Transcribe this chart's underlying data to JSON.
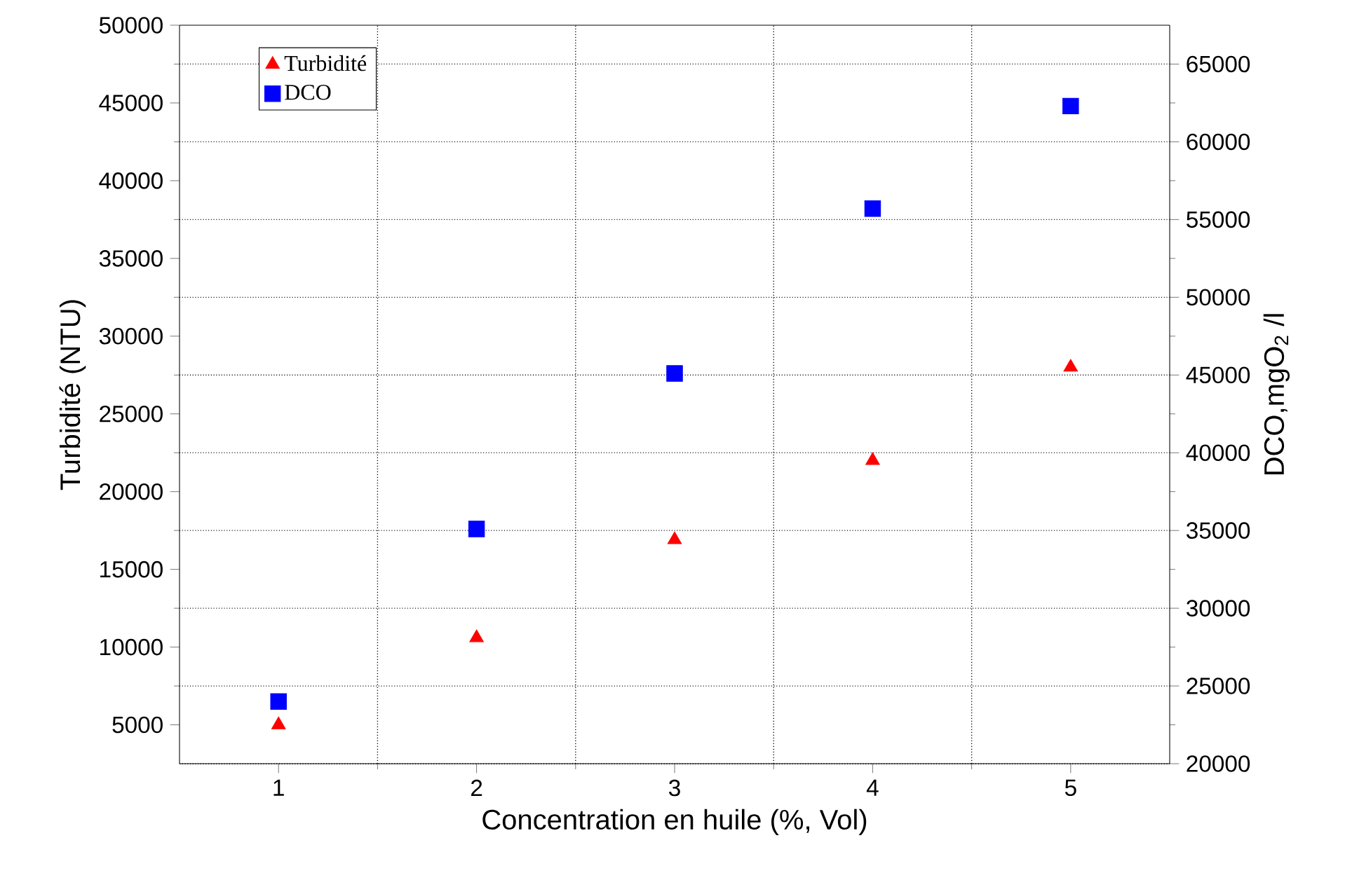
{
  "chart_data": {
    "type": "scatter",
    "xlabel": "Concentration en huile (%, Vol)",
    "ylabel": "Turbidité (NTU)",
    "y2label": "DCO,mgO$_{2}$ /l",
    "x": [
      1,
      2,
      3,
      4,
      5
    ],
    "series": [
      {
        "name": "Turbidité",
        "color": "#ff0000",
        "marker": "triangle",
        "values": [
          5000,
          10600,
          16900,
          22000,
          28000
        ]
      },
      {
        "name": "DCO",
        "color": "#0000ff",
        "marker": "square",
        "axis": "y2",
        "values": [
          24000,
          35100,
          45100,
          55700,
          62300
        ]
      }
    ],
    "xlim": [
      0.5,
      5.5
    ],
    "xticks": [
      1,
      2,
      3,
      4,
      5
    ],
    "ylim": [
      2500,
      50000
    ],
    "yticks": [
      5000,
      10000,
      15000,
      20000,
      25000,
      30000,
      35000,
      40000,
      45000,
      50000
    ],
    "y2lim": [
      20000,
      67500
    ],
    "y2ticks": [
      20000,
      25000,
      30000,
      35000,
      40000,
      45000,
      50000,
      55000,
      60000,
      65000
    ],
    "grid": true,
    "legend": "top left"
  }
}
